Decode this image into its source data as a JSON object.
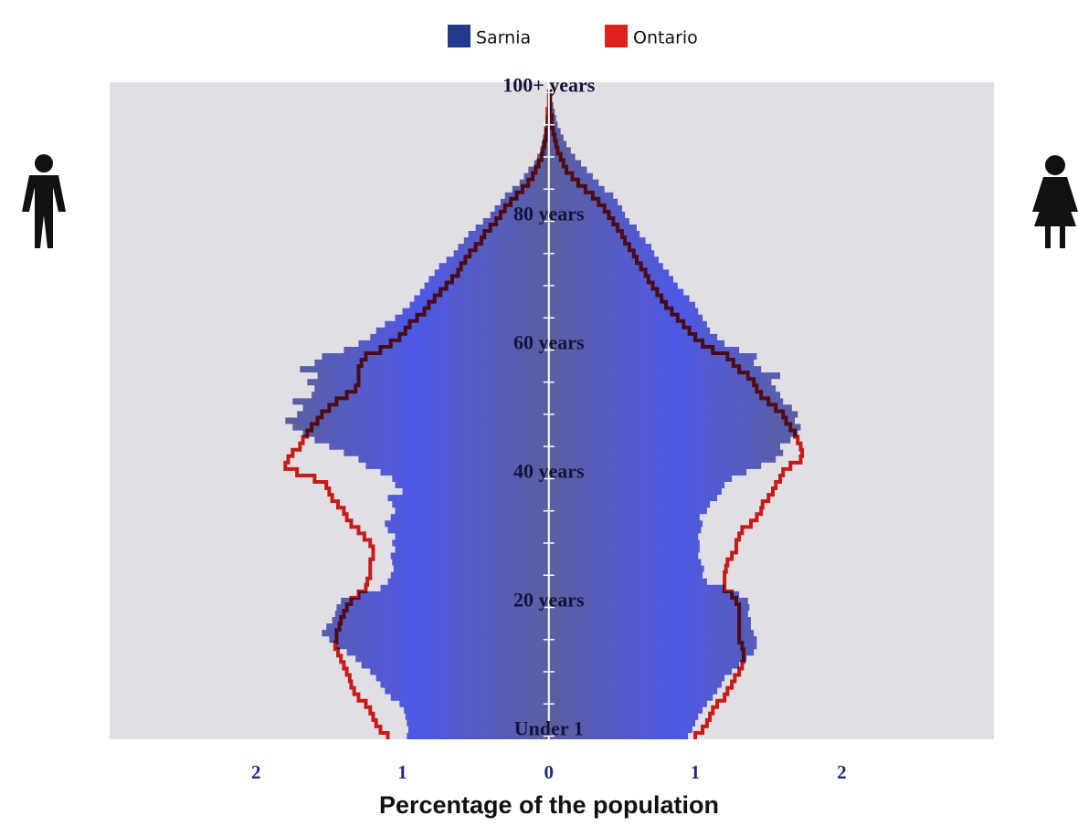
{
  "chart_data": {
    "type": "population_pyramid",
    "xlabel": "Percentage of the population",
    "xlim": [
      -3,
      3.04
    ],
    "xticks": [
      {
        "value": -2,
        "label": "2"
      },
      {
        "value": -1,
        "label": "1"
      },
      0,
      1,
      2
    ],
    "categories": [
      "Under 1",
      null,
      null,
      null,
      null,
      null,
      null,
      null,
      null,
      null,
      null,
      null,
      null,
      null,
      null,
      null,
      null,
      null,
      null,
      null,
      "20 years",
      null,
      null,
      null,
      null,
      null,
      null,
      null,
      null,
      null,
      null,
      null,
      null,
      null,
      null,
      null,
      null,
      null,
      null,
      null,
      "40 years",
      null,
      null,
      null,
      null,
      null,
      null,
      null,
      null,
      null,
      null,
      null,
      null,
      null,
      null,
      null,
      null,
      null,
      null,
      null,
      "60 years",
      null,
      null,
      null,
      null,
      null,
      null,
      null,
      null,
      null,
      null,
      null,
      null,
      null,
      null,
      null,
      null,
      null,
      null,
      null,
      "80 years",
      null,
      null,
      null,
      null,
      null,
      null,
      null,
      null,
      null,
      null,
      null,
      null,
      null,
      null,
      null,
      null,
      null,
      null,
      null,
      "100+ years"
    ],
    "series": [
      {
        "name": "Sarnia",
        "color": "#233a8c",
        "male": [
          0.97,
          0.96,
          0.97,
          0.98,
          0.99,
          1.02,
          1.08,
          1.12,
          1.15,
          1.18,
          1.22,
          1.28,
          1.32,
          1.38,
          1.45,
          1.5,
          1.55,
          1.52,
          1.48,
          1.46,
          1.45,
          1.42,
          1.3,
          1.15,
          1.1,
          1.08,
          1.06,
          1.07,
          1.08,
          1.05,
          1.07,
          1.05,
          1.1,
          1.12,
          1.08,
          1.05,
          1.07,
          1.1,
          1.0,
          1.05,
          1.07,
          1.15,
          1.25,
          1.3,
          1.4,
          1.5,
          1.6,
          1.68,
          1.75,
          1.8,
          1.72,
          1.68,
          1.75,
          1.62,
          1.6,
          1.65,
          1.58,
          1.7,
          1.6,
          1.55,
          1.4,
          1.3,
          1.22,
          1.18,
          1.12,
          1.05,
          1.0,
          0.95,
          0.92,
          0.88,
          0.85,
          0.82,
          0.78,
          0.75,
          0.7,
          0.65,
          0.62,
          0.58,
          0.55,
          0.5,
          0.45,
          0.4,
          0.37,
          0.33,
          0.3,
          0.25,
          0.2,
          0.17,
          0.14,
          0.1,
          0.08,
          0.06,
          0.05,
          0.04,
          0.03,
          0.02,
          0.02,
          0.01,
          0.01,
          0.01,
          0.01
        ],
        "female": [
          0.95,
          0.98,
          1.0,
          1.02,
          1.05,
          1.08,
          1.12,
          1.15,
          1.18,
          1.2,
          1.25,
          1.3,
          1.35,
          1.4,
          1.42,
          1.42,
          1.4,
          1.38,
          1.38,
          1.36,
          1.37,
          1.36,
          1.3,
          1.2,
          1.08,
          1.05,
          1.06,
          1.04,
          1.02,
          1.03,
          1.03,
          1.02,
          1.04,
          1.05,
          1.03,
          1.08,
          1.1,
          1.15,
          1.18,
          1.2,
          1.25,
          1.35,
          1.45,
          1.55,
          1.6,
          1.58,
          1.65,
          1.7,
          1.72,
          1.68,
          1.7,
          1.66,
          1.6,
          1.58,
          1.55,
          1.52,
          1.58,
          1.45,
          1.4,
          1.42,
          1.3,
          1.2,
          1.15,
          1.1,
          1.08,
          1.05,
          1.02,
          1.0,
          0.96,
          0.92,
          0.88,
          0.85,
          0.82,
          0.78,
          0.75,
          0.72,
          0.7,
          0.66,
          0.62,
          0.6,
          0.55,
          0.52,
          0.5,
          0.47,
          0.44,
          0.38,
          0.34,
          0.3,
          0.26,
          0.22,
          0.18,
          0.15,
          0.12,
          0.1,
          0.08,
          0.06,
          0.05,
          0.04,
          0.03,
          0.02,
          0.02
        ]
      },
      {
        "name": "Ontario",
        "color": "#e0201c",
        "male": [
          1.1,
          1.15,
          1.18,
          1.2,
          1.22,
          1.25,
          1.3,
          1.33,
          1.35,
          1.36,
          1.38,
          1.4,
          1.42,
          1.44,
          1.46,
          1.45,
          1.45,
          1.43,
          1.42,
          1.4,
          1.38,
          1.35,
          1.3,
          1.25,
          1.24,
          1.22,
          1.22,
          1.22,
          1.2,
          1.2,
          1.22,
          1.26,
          1.3,
          1.35,
          1.38,
          1.4,
          1.44,
          1.48,
          1.5,
          1.52,
          1.6,
          1.72,
          1.8,
          1.78,
          1.75,
          1.7,
          1.68,
          1.65,
          1.62,
          1.58,
          1.55,
          1.5,
          1.45,
          1.38,
          1.32,
          1.3,
          1.3,
          1.3,
          1.28,
          1.25,
          1.15,
          1.08,
          1.02,
          0.98,
          0.95,
          0.9,
          0.85,
          0.82,
          0.78,
          0.74,
          0.7,
          0.66,
          0.62,
          0.6,
          0.57,
          0.54,
          0.5,
          0.46,
          0.44,
          0.4,
          0.36,
          0.33,
          0.3,
          0.26,
          0.22,
          0.18,
          0.14,
          0.11,
          0.09,
          0.07,
          0.05,
          0.04,
          0.03,
          0.02,
          0.02,
          0.01,
          0.01,
          0.01,
          0,
          0,
          0
        ],
        "female": [
          1.0,
          1.05,
          1.08,
          1.1,
          1.12,
          1.15,
          1.2,
          1.22,
          1.25,
          1.27,
          1.3,
          1.32,
          1.33,
          1.33,
          1.32,
          1.3,
          1.3,
          1.3,
          1.3,
          1.3,
          1.3,
          1.28,
          1.25,
          1.2,
          1.2,
          1.2,
          1.21,
          1.22,
          1.25,
          1.28,
          1.28,
          1.3,
          1.32,
          1.38,
          1.42,
          1.45,
          1.46,
          1.5,
          1.53,
          1.55,
          1.58,
          1.6,
          1.65,
          1.72,
          1.73,
          1.72,
          1.7,
          1.68,
          1.65,
          1.62,
          1.6,
          1.55,
          1.5,
          1.45,
          1.42,
          1.4,
          1.36,
          1.3,
          1.26,
          1.22,
          1.12,
          1.05,
          1.0,
          0.96,
          0.92,
          0.88,
          0.84,
          0.8,
          0.77,
          0.74,
          0.71,
          0.68,
          0.66,
          0.63,
          0.6,
          0.58,
          0.55,
          0.52,
          0.5,
          0.47,
          0.44,
          0.41,
          0.38,
          0.34,
          0.3,
          0.25,
          0.2,
          0.16,
          0.12,
          0.1,
          0.08,
          0.06,
          0.05,
          0.04,
          0.03,
          0.02,
          0.02,
          0.01,
          0.01,
          0.01,
          0.01
        ]
      }
    ]
  }
}
